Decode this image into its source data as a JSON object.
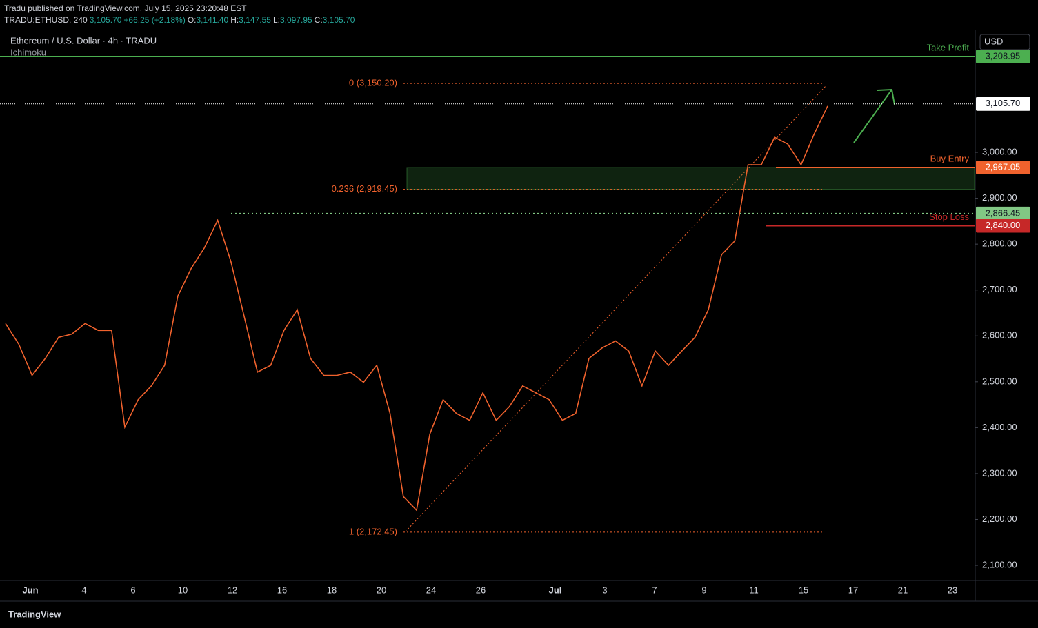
{
  "chart_data": {
    "type": "line",
    "publisher": "Tradu published on TradingView.com, July 15, 2025 23:20:48 EST",
    "symbol": "TRADU:ETHUSD, 240",
    "last": "3,105.70",
    "change": "+66.25 (+2.18%)",
    "ohlc": [
      {
        "key": "O:",
        "value": "3,141.40"
      },
      {
        "key": "H:",
        "value": "3,147.55"
      },
      {
        "key": "L:",
        "value": "3,097.95"
      },
      {
        "key": "C:",
        "value": "3,105.70"
      }
    ],
    "title": "Ethereum / U.S. Dollar · 4h · TRADU",
    "subtitle": "Ichimoku",
    "currency": "USD",
    "brand": "TradingView",
    "color": "#f0622d",
    "values": [
      2627,
      2582,
      2514,
      2551,
      2597,
      2604,
      2627,
      2612,
      2612,
      2401,
      2461,
      2491,
      2536,
      2687,
      2747,
      2792,
      2852,
      2762,
      2642,
      2521,
      2536,
      2612,
      2657,
      2551,
      2514,
      2514,
      2521,
      2499,
      2536,
      2431,
      2250,
      2220,
      2386,
      2461,
      2431,
      2416,
      2476,
      2416,
      2446,
      2491,
      2476,
      2461,
      2416,
      2431,
      2551,
      2574,
      2589,
      2567,
      2491,
      2567,
      2536,
      2567,
      2597,
      2657,
      2777,
      2807,
      2973,
      2973,
      3033,
      3018,
      2973,
      3041,
      3101
    ],
    "ylim": [
      2067,
      3266
    ],
    "yticks": [
      {
        "value": 2100,
        "label": "2,100.00"
      },
      {
        "value": 2200,
        "label": "2,200.00"
      },
      {
        "value": 2300,
        "label": "2,300.00"
      },
      {
        "value": 2400,
        "label": "2,400.00"
      },
      {
        "value": 2500,
        "label": "2,500.00"
      },
      {
        "value": 2600,
        "label": "2,600.00"
      },
      {
        "value": 2700,
        "label": "2,700.00"
      },
      {
        "value": 2800,
        "label": "2,800.00"
      },
      {
        "value": 2900,
        "label": "2,900.00"
      },
      {
        "value": 3000,
        "label": "3,000.00"
      }
    ],
    "xticks": [
      "Jun",
      "4",
      "6",
      "10",
      "12",
      "16",
      "18",
      "20",
      "24",
      "26",
      "Jul",
      "3",
      "7",
      "9",
      "11",
      "15",
      "17",
      "21",
      "23"
    ],
    "levels": [
      {
        "name": "Take Profit",
        "value": 3208.95,
        "value_label": "3,208.95",
        "color": "#4caf50"
      },
      {
        "value": 3105.7,
        "value_label": "3,105.70",
        "color": "#ffffff"
      },
      {
        "name": "Buy Entry",
        "value": 2967.05,
        "value_label": "2,967.05",
        "color": "#f0622d"
      },
      {
        "value": 2866.45,
        "value_label": "2,866.45",
        "color": "#81c784"
      },
      {
        "name": "Stop Loss",
        "value": 2840,
        "value_label": "2,840.00",
        "color": "#c62828"
      }
    ],
    "fibs": [
      {
        "label": "0 (3,150.20)",
        "value": 3150.2
      },
      {
        "label": "0.236 (2,919.45)",
        "value": 2919.45
      },
      {
        "label": "1 (2,172.45)",
        "value": 2172.45
      }
    ]
  }
}
